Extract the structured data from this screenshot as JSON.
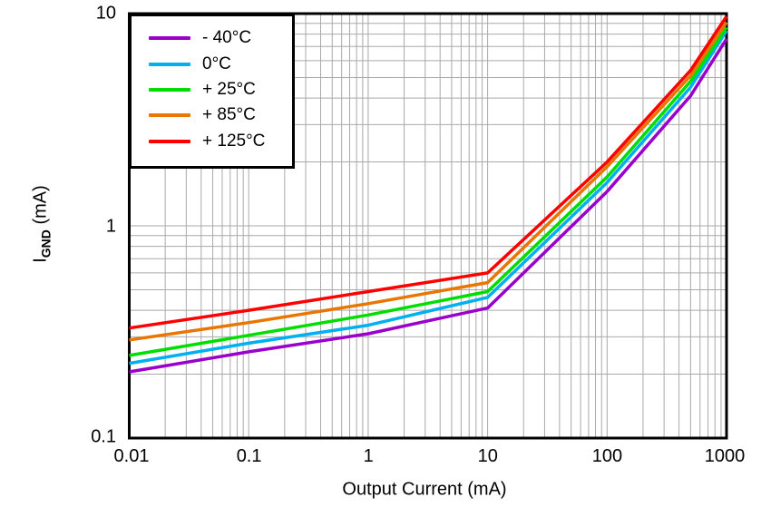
{
  "chart_data": {
    "type": "line",
    "title": "",
    "xlabel": "Output Current (mA)",
    "ylabel": "I_GND (mA)",
    "ylabel_main": "I",
    "ylabel_sub": "GND",
    "ylabel_unit": " (mA)",
    "x_scale": "log",
    "y_scale": "log",
    "xlim": [
      0.01,
      1000
    ],
    "ylim": [
      0.1,
      10
    ],
    "x_ticks": [
      "0.01",
      "0.1",
      "1",
      "10",
      "100",
      "1000"
    ],
    "y_ticks": [
      "0.1",
      "1",
      "10"
    ],
    "grid": "log major and minor gridlines on",
    "grid_color": "#A9A9A9",
    "frame_color": "#000000",
    "legend_position": "top-left inside plot",
    "x": [
      0.01,
      0.1,
      1,
      10,
      100,
      500,
      1000
    ],
    "series": [
      {
        "name": "- 40°C",
        "color": "#9900CC",
        "values": [
          0.205,
          0.255,
          0.31,
          0.41,
          1.45,
          4.1,
          7.6
        ]
      },
      {
        "name": "0°C",
        "color": "#00B0F0",
        "values": [
          0.225,
          0.28,
          0.34,
          0.46,
          1.6,
          4.5,
          8.3
        ]
      },
      {
        "name": "+ 25°C",
        "color": "#00DD00",
        "values": [
          0.245,
          0.305,
          0.38,
          0.49,
          1.7,
          4.8,
          8.6
        ]
      },
      {
        "name": "+ 85°C",
        "color": "#E87600",
        "values": [
          0.29,
          0.35,
          0.43,
          0.54,
          1.9,
          5.1,
          9.1
        ]
      },
      {
        "name": "+ 125°C",
        "color": "#FF0000",
        "values": [
          0.33,
          0.4,
          0.49,
          0.6,
          2.0,
          5.4,
          9.7
        ]
      }
    ]
  }
}
